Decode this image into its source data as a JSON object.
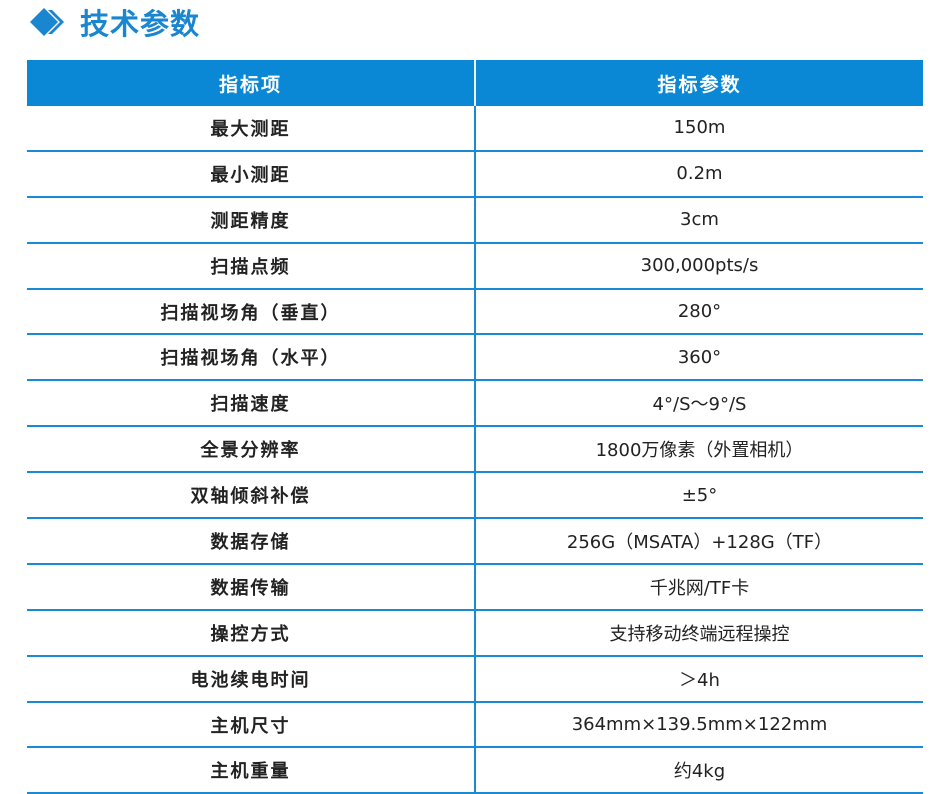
{
  "title": "技术参数",
  "accent": "#0a88d6",
  "headers": [
    "指标项",
    "指标参数"
  ],
  "rows": [
    [
      "最大测距",
      "150m"
    ],
    [
      "最小测距",
      "0.2m"
    ],
    [
      "测距精度",
      "3cm"
    ],
    [
      "扫描点频",
      "300,000pts/s"
    ],
    [
      "扫描视场角（垂直）",
      "280°"
    ],
    [
      "扫描视场角（水平）",
      "360°"
    ],
    [
      "扫描速度",
      "4°/S～9°/S"
    ],
    [
      "全景分辨率",
      "1800万像素（外置相机）"
    ],
    [
      "双轴倾斜补偿",
      "±5°"
    ],
    [
      "数据存储",
      "256G（MSATA）+128G（TF）"
    ],
    [
      "数据传输",
      "千兆网/TF卡"
    ],
    [
      "操控方式",
      "支持移动终端远程操控"
    ],
    [
      "电池续电时间",
      "＞4h"
    ],
    [
      "主机尺寸",
      "364mm×139.5mm×122mm"
    ],
    [
      "主机重量",
      "约4kg"
    ]
  ]
}
